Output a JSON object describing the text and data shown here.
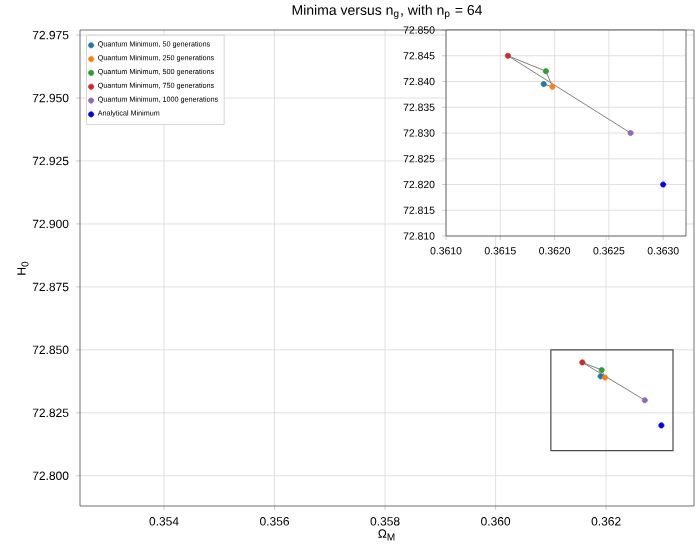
{
  "chart_data": [
    {
      "type": "scatter",
      "title": "Minima versus n$_{g}$, with n$_{p}$ = 64",
      "xlabel": "Ω$_{M}$",
      "ylabel": "H$_{0}$",
      "xlim": [
        0.35248,
        0.36359
      ],
      "ylim": [
        72.788,
        72.977
      ],
      "xticks": [
        0.354,
        0.356,
        0.358,
        {
          "value": 0.36,
          "label": "0.360"
        },
        0.362
      ],
      "yticks": [
        {
          "value": 72.8,
          "label": "72.800"
        },
        {
          "value": 72.825,
          "label": "72.825"
        },
        {
          "value": 72.85,
          "label": "72.850"
        },
        {
          "value": 72.875,
          "label": "72.875"
        },
        {
          "value": 72.9,
          "label": "72.900"
        },
        {
          "value": 72.925,
          "label": "72.925"
        },
        {
          "value": 72.95,
          "label": "72.950"
        },
        {
          "value": 72.975,
          "label": "72.975"
        }
      ],
      "grid": true,
      "legend": "top left",
      "series": [
        {
          "type": "line",
          "marker": "none",
          "color": "#808080",
          "x": [
            0.3619,
            0.36198,
            0.36192,
            0.36157,
            0.3627
          ],
          "values": [
            72.8395,
            72.839,
            72.842,
            72.845,
            72.83
          ]
        },
        {
          "name": "Quantum Minimum, 50 generations",
          "marker": "circle",
          "color": "#1f77b4",
          "x": [
            0.3619
          ],
          "values": [
            72.8395
          ]
        },
        {
          "name": "Quantum Minimum, 250 generations",
          "marker": "circle",
          "color": "#ff7f0e",
          "x": [
            0.36198
          ],
          "values": [
            72.839
          ]
        },
        {
          "name": "Quantum Minimum, 500 generations",
          "marker": "circle",
          "color": "#2ca02c",
          "x": [
            0.36192
          ],
          "values": [
            72.842
          ]
        },
        {
          "name": "Quantum Minimum, 750 generations",
          "marker": "circle",
          "color": "#d62728",
          "x": [
            0.36157
          ],
          "values": [
            72.845
          ]
        },
        {
          "name": "Quantum Minimum, 1000 generations",
          "marker": "circle",
          "color": "#9467bd",
          "x": [
            0.3627
          ],
          "values": [
            72.83
          ]
        },
        {
          "name": "Analytical Minimum",
          "marker": "circle",
          "color": "#0000ff",
          "x": [
            0.363
          ],
          "values": [
            72.82
          ]
        }
      ]
    },
    {
      "type": "scatter",
      "xlim": [
        0.361,
        0.36321
      ],
      "ylim": [
        72.81,
        72.85
      ],
      "xticks": [
        {
          "value": 0.361,
          "label": "0.3610"
        },
        {
          "value": 0.3615,
          "label": "0.3615"
        },
        {
          "value": 0.362,
          "label": "0.3620"
        },
        {
          "value": 0.3625,
          "label": "0.3625"
        },
        {
          "value": 0.363,
          "label": "0.3630"
        }
      ],
      "yticks": [
        {
          "value": 72.81,
          "label": "72.810"
        },
        {
          "value": 72.815,
          "label": "72.815"
        },
        {
          "value": 72.82,
          "label": "72.820"
        },
        {
          "value": 72.825,
          "label": "72.825"
        },
        {
          "value": 72.83,
          "label": "72.830"
        },
        {
          "value": 72.835,
          "label": "72.835"
        },
        {
          "value": 72.84,
          "label": "72.840"
        },
        {
          "value": 72.845,
          "label": "72.845"
        },
        {
          "value": 72.85,
          "label": "72.850"
        }
      ],
      "grid": true,
      "series": [
        {
          "type": "line",
          "marker": "none",
          "color": "#808080",
          "x": [
            0.3619,
            0.36198,
            0.36192,
            0.36157,
            0.3627
          ],
          "values": [
            72.8395,
            72.839,
            72.842,
            72.845,
            72.83
          ]
        },
        {
          "marker": "circle",
          "color": "#1f77b4",
          "x": [
            0.3619
          ],
          "values": [
            72.8395
          ]
        },
        {
          "marker": "circle",
          "color": "#ff7f0e",
          "x": [
            0.36198
          ],
          "values": [
            72.839
          ]
        },
        {
          "marker": "circle",
          "color": "#2ca02c",
          "x": [
            0.36192
          ],
          "values": [
            72.842
          ]
        },
        {
          "marker": "circle",
          "color": "#d62728",
          "x": [
            0.36157
          ],
          "values": [
            72.845
          ]
        },
        {
          "marker": "circle",
          "color": "#9467bd",
          "x": [
            0.3627
          ],
          "values": [
            72.83
          ]
        },
        {
          "marker": "circle",
          "color": "#0000ff",
          "x": [
            0.363
          ],
          "values": [
            72.82
          ]
        }
      ]
    }
  ]
}
